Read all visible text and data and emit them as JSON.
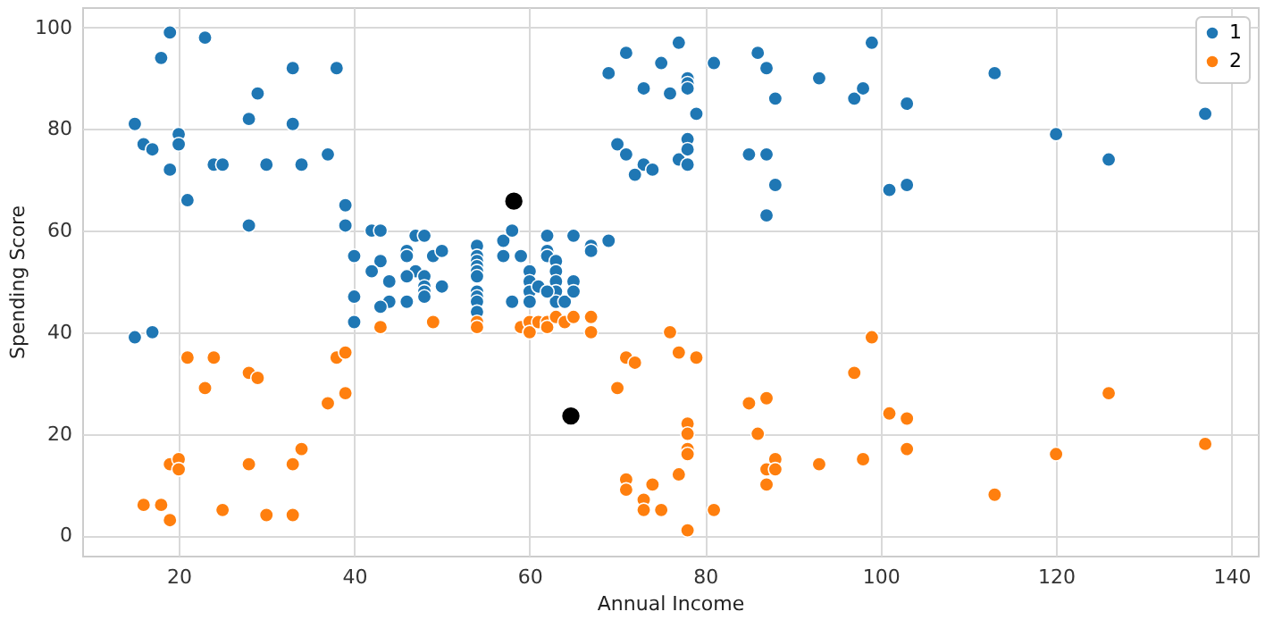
{
  "chart_data": {
    "type": "scatter",
    "xlabel": "Annual Income",
    "ylabel": "Spending Score",
    "xlim": [
      9,
      143
    ],
    "ylim": [
      -4,
      104
    ],
    "xticks": [
      20,
      40,
      60,
      80,
      100,
      120,
      140
    ],
    "yticks": [
      0,
      20,
      40,
      60,
      80,
      100
    ],
    "grid": true,
    "legend": "top right",
    "marker": "circle",
    "series": [
      {
        "name": "1",
        "color": "#1f77b4",
        "x": [
          15,
          16,
          17,
          18,
          19,
          19,
          20,
          20,
          21,
          23,
          24,
          25,
          28,
          28,
          29,
          30,
          33,
          33,
          34,
          37,
          38,
          39,
          39,
          15,
          17,
          40,
          40,
          40,
          42,
          43,
          43,
          42,
          44,
          46,
          46,
          47,
          48,
          49,
          50,
          47,
          46,
          48,
          48,
          48,
          48,
          50,
          44,
          43,
          46,
          54,
          54,
          54,
          54,
          54,
          54,
          54,
          54,
          54,
          54,
          57,
          58,
          57,
          59,
          58,
          62,
          62,
          62,
          63,
          63,
          63,
          63,
          63,
          65,
          67,
          67,
          69,
          60,
          60,
          60,
          60,
          61,
          62,
          64,
          65,
          65,
          69,
          71,
          73,
          75,
          76,
          77,
          78,
          78,
          78,
          79,
          81,
          86,
          87,
          88,
          93,
          97,
          70,
          71,
          73,
          72,
          74,
          77,
          78,
          78,
          78,
          85,
          87,
          88,
          87,
          99,
          98,
          103,
          113,
          101,
          103,
          120,
          126,
          137
        ],
        "values": [
          81,
          77,
          76,
          94,
          99,
          72,
          79,
          77,
          66,
          98,
          73,
          73,
          61,
          82,
          87,
          73,
          92,
          81,
          73,
          75,
          92,
          65,
          61,
          39,
          40,
          55,
          47,
          42,
          60,
          60,
          54,
          52,
          50,
          56,
          55,
          59,
          59,
          55,
          56,
          52,
          51,
          51,
          49,
          48,
          47,
          49,
          46,
          45,
          46,
          57,
          55,
          54,
          53,
          52,
          51,
          48,
          47,
          46,
          44,
          58,
          60,
          55,
          55,
          46,
          59,
          56,
          55,
          54,
          52,
          50,
          48,
          46,
          59,
          57,
          56,
          58,
          52,
          50,
          48,
          46,
          49,
          48,
          46,
          50,
          48,
          91,
          95,
          88,
          93,
          87,
          97,
          90,
          89,
          88,
          83,
          93,
          95,
          92,
          86,
          90,
          86,
          77,
          75,
          73,
          71,
          72,
          74,
          78,
          76,
          73,
          75,
          75,
          69,
          63,
          97,
          88,
          85,
          91,
          68,
          69,
          79,
          74,
          83
        ]
      },
      {
        "name": "2",
        "color": "#ff7f0e",
        "x": [
          21,
          24,
          23,
          28,
          29,
          19,
          20,
          20,
          28,
          33,
          34,
          16,
          18,
          19,
          25,
          30,
          33,
          38,
          39,
          37,
          39,
          43,
          49,
          54,
          54,
          59,
          60,
          60,
          61,
          62,
          62,
          63,
          64,
          65,
          67,
          67,
          76,
          71,
          72,
          77,
          79,
          70,
          78,
          78,
          78,
          78,
          77,
          71,
          71,
          74,
          73,
          73,
          75,
          81,
          78,
          85,
          87,
          86,
          88,
          87,
          88,
          87,
          93,
          97,
          99,
          98,
          101,
          103,
          103,
          113,
          120,
          126,
          137
        ],
        "values": [
          35,
          35,
          29,
          32,
          31,
          14,
          15,
          13,
          14,
          14,
          17,
          6,
          6,
          3,
          5,
          4,
          4,
          35,
          36,
          26,
          28,
          41,
          42,
          42,
          41,
          41,
          42,
          40,
          42,
          42,
          41,
          43,
          42,
          43,
          43,
          40,
          40,
          35,
          34,
          36,
          35,
          29,
          22,
          20,
          17,
          16,
          12,
          11,
          9,
          10,
          7,
          5,
          5,
          5,
          1,
          26,
          27,
          20,
          15,
          13,
          13,
          10,
          14,
          32,
          39,
          15,
          24,
          23,
          17,
          8,
          16,
          28,
          18
        ]
      },
      {
        "color": "#000000",
        "x": [
          58.2,
          64.7
        ],
        "values": [
          65.8,
          23.5
        ]
      }
    ]
  }
}
